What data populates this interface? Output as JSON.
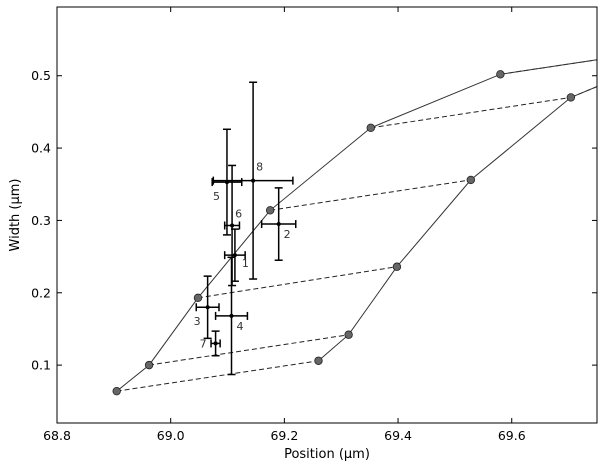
{
  "chart_data": {
    "type": "scatter",
    "xlabel": "Position (μm)",
    "ylabel": "Width (μm)",
    "xlim": [
      68.8,
      69.75
    ],
    "ylim": [
      0.02,
      0.595
    ],
    "xticks": [
      68.8,
      69.0,
      69.2,
      69.4,
      69.6
    ],
    "xtick_labels": [
      "68.8",
      "69.0",
      "69.2",
      "69.4",
      "69.6"
    ],
    "yticks": [
      0.1,
      0.2,
      0.3,
      0.4,
      0.5
    ],
    "ytick_labels": [
      "0.1",
      "0.2",
      "0.3",
      "0.4",
      "0.5"
    ],
    "grid": false,
    "left_curve": {
      "x": [
        68.905,
        68.962,
        69.048,
        69.175,
        69.352,
        69.58,
        69.75
      ],
      "y": [
        0.064,
        0.1,
        0.193,
        0.314,
        0.428,
        0.502,
        0.522
      ]
    },
    "right_curve": {
      "x": [
        69.26,
        69.313,
        69.398,
        69.528,
        69.704,
        69.75
      ],
      "y": [
        0.106,
        0.142,
        0.236,
        0.356,
        0.47,
        0.485
      ]
    },
    "dashed_links": [
      {
        "from": [
          68.905,
          0.064
        ],
        "to": [
          69.26,
          0.106
        ]
      },
      {
        "from": [
          68.962,
          0.1
        ],
        "to": [
          69.313,
          0.142
        ]
      },
      {
        "from": [
          69.048,
          0.193
        ],
        "to": [
          69.398,
          0.236
        ]
      },
      {
        "from": [
          69.175,
          0.314
        ],
        "to": [
          69.528,
          0.356
        ]
      },
      {
        "from": [
          69.352,
          0.428
        ],
        "to": [
          69.704,
          0.47
        ]
      },
      {
        "from": [
          69.58,
          0.502
        ],
        "to": [
          69.75,
          0.522
        ]
      },
      {
        "from": [
          69.704,
          0.47
        ],
        "to": [
          69.75,
          0.485
        ]
      }
    ],
    "measurements": [
      {
        "label": "1",
        "x": 69.113,
        "y": 0.252,
        "xerr": 0.018,
        "yerr": 0.036
      },
      {
        "label": "2",
        "x": 69.19,
        "y": 0.295,
        "xerr": 0.03,
        "yerr": 0.05
      },
      {
        "label": "3",
        "x": 69.065,
        "y": 0.18,
        "xerr": 0.02,
        "yerr": 0.043
      },
      {
        "label": "4",
        "x": 69.107,
        "y": 0.168,
        "xerr": 0.028,
        "yerr": 0.081
      },
      {
        "label": "5",
        "x": 69.099,
        "y": 0.353,
        "xerr": 0.026,
        "yerr": 0.073
      },
      {
        "label": "6",
        "x": 69.108,
        "y": 0.293,
        "xerr": 0.013,
        "yerr": 0.083
      },
      {
        "label": "7",
        "x": 69.079,
        "y": 0.13,
        "xerr": 0.008,
        "yerr": 0.017
      },
      {
        "label": "8",
        "x": 69.145,
        "y": 0.355,
        "xerr": 0.07,
        "yerr": 0.136
      }
    ]
  }
}
